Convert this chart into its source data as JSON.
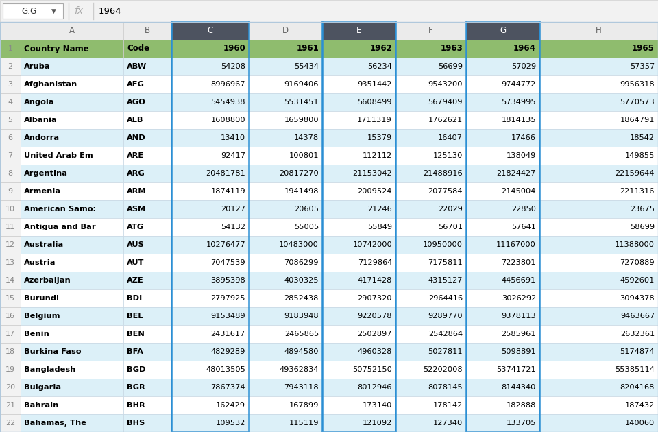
{
  "formula_bar_cell": "G:G",
  "formula_bar_value": "1964",
  "col_headers": [
    "A",
    "B",
    "C",
    "D",
    "E",
    "F",
    "G",
    "H"
  ],
  "header_row": [
    "Country Name",
    "Code",
    "1960",
    "1961",
    "1962",
    "1963",
    "1964",
    "1965"
  ],
  "data_rows": [
    [
      "Aruba",
      "ABW",
      "54208",
      "55434",
      "56234",
      "56699",
      "57029",
      "57357"
    ],
    [
      "Afghanistan",
      "AFG",
      "8996967",
      "9169406",
      "9351442",
      "9543200",
      "9744772",
      "9956318"
    ],
    [
      "Angola",
      "AGO",
      "5454938",
      "5531451",
      "5608499",
      "5679409",
      "5734995",
      "5770573"
    ],
    [
      "Albania",
      "ALB",
      "1608800",
      "1659800",
      "1711319",
      "1762621",
      "1814135",
      "1864791"
    ],
    [
      "Andorra",
      "AND",
      "13410",
      "14378",
      "15379",
      "16407",
      "17466",
      "18542"
    ],
    [
      "United Arab Em",
      "ARE",
      "92417",
      "100801",
      "112112",
      "125130",
      "138049",
      "149855"
    ],
    [
      "Argentina",
      "ARG",
      "20481781",
      "20817270",
      "21153042",
      "21488916",
      "21824427",
      "22159644"
    ],
    [
      "Armenia",
      "ARM",
      "1874119",
      "1941498",
      "2009524",
      "2077584",
      "2145004",
      "2211316"
    ],
    [
      "American Samo:",
      "ASM",
      "20127",
      "20605",
      "21246",
      "22029",
      "22850",
      "23675"
    ],
    [
      "Antigua and Bar",
      "ATG",
      "54132",
      "55005",
      "55849",
      "56701",
      "57641",
      "58699"
    ],
    [
      "Australia",
      "AUS",
      "10276477",
      "10483000",
      "10742000",
      "10950000",
      "11167000",
      "11388000"
    ],
    [
      "Austria",
      "AUT",
      "7047539",
      "7086299",
      "7129864",
      "7175811",
      "7223801",
      "7270889"
    ],
    [
      "Azerbaijan",
      "AZE",
      "3895398",
      "4030325",
      "4171428",
      "4315127",
      "4456691",
      "4592601"
    ],
    [
      "Burundi",
      "BDI",
      "2797925",
      "2852438",
      "2907320",
      "2964416",
      "3026292",
      "3094378"
    ],
    [
      "Belgium",
      "BEL",
      "9153489",
      "9183948",
      "9220578",
      "9289770",
      "9378113",
      "9463667"
    ],
    [
      "Benin",
      "BEN",
      "2431617",
      "2465865",
      "2502897",
      "2542864",
      "2585961",
      "2632361"
    ],
    [
      "Burkina Faso",
      "BFA",
      "4829289",
      "4894580",
      "4960328",
      "5027811",
      "5098891",
      "5174874"
    ],
    [
      "Bangladesh",
      "BGD",
      "48013505",
      "49362834",
      "50752150",
      "52202008",
      "53741721",
      "55385114"
    ],
    [
      "Bulgaria",
      "BGR",
      "7867374",
      "7943118",
      "8012946",
      "8078145",
      "8144340",
      "8204168"
    ],
    [
      "Bahrain",
      "BHR",
      "162429",
      "167899",
      "173140",
      "178142",
      "182888",
      "187432"
    ],
    [
      "Bahamas, The",
      "BHS",
      "109532",
      "115119",
      "121092",
      "127340",
      "133705",
      "140060"
    ]
  ],
  "colors": {
    "header_row_bg": "#8FBC6E",
    "header_row_text": "#000000",
    "col_header_dark_bg": "#4D5360",
    "col_header_dark_text": "#FFFFFF",
    "col_header_light_bg": "#EBEBEB",
    "col_header_light_text": "#666666",
    "row_num_bg": "#F2F2F2",
    "row_num_text": "#888888",
    "data_bg_even": "#DCF0F8",
    "data_bg_odd": "#FFFFFF",
    "data_text": "#000000",
    "top_bar_bg": "#F2F2F2",
    "selected_col_border": "#2B8FD4",
    "grid_line": "#C8D8E4"
  }
}
